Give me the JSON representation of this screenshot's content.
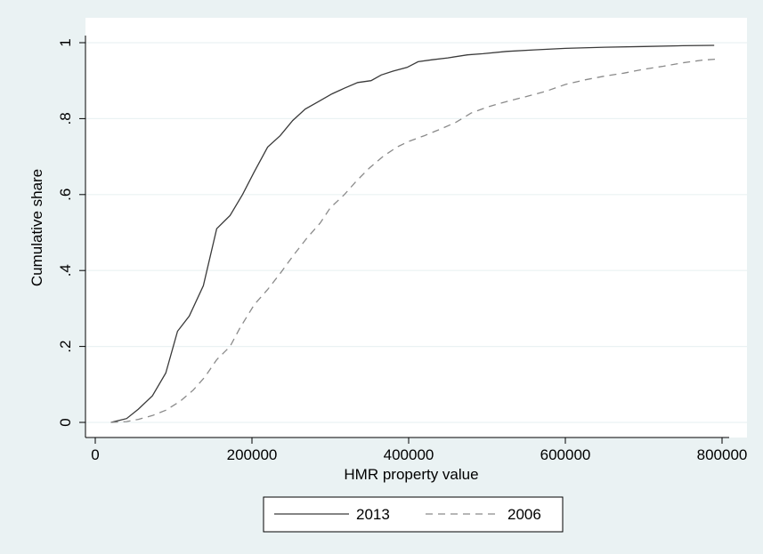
{
  "chart_data": {
    "type": "line",
    "xlabel": "HMR property value",
    "ylabel": "Cumulative share",
    "xlim": [
      0,
      800000
    ],
    "ylim": [
      0,
      1
    ],
    "x_ticks": [
      0,
      200000,
      400000,
      600000,
      800000
    ],
    "x_tick_labels": [
      "0",
      "200000",
      "400000",
      "600000",
      "800000"
    ],
    "y_ticks": [
      0,
      0.2,
      0.4,
      0.6,
      0.8,
      1
    ],
    "y_tick_labels": [
      "0",
      ".2",
      ".4",
      ".6",
      ".8",
      "1"
    ],
    "grid": "horizontal",
    "legend_position": "bottom",
    "series": [
      {
        "name": "2013",
        "style": "solid",
        "color": "#3a3a3a",
        "points": [
          [
            20000,
            0.0
          ],
          [
            40000,
            0.01
          ],
          [
            55000,
            0.035
          ],
          [
            73000,
            0.07
          ],
          [
            90000,
            0.13
          ],
          [
            105000,
            0.24
          ],
          [
            120000,
            0.28
          ],
          [
            138000,
            0.36
          ],
          [
            155000,
            0.51
          ],
          [
            172000,
            0.545
          ],
          [
            188000,
            0.6
          ],
          [
            203000,
            0.66
          ],
          [
            220000,
            0.725
          ],
          [
            236000,
            0.755
          ],
          [
            252000,
            0.795
          ],
          [
            268000,
            0.825
          ],
          [
            285000,
            0.845
          ],
          [
            302000,
            0.865
          ],
          [
            318000,
            0.88
          ],
          [
            335000,
            0.895
          ],
          [
            352000,
            0.9
          ],
          [
            365000,
            0.915
          ],
          [
            380000,
            0.925
          ],
          [
            398000,
            0.935
          ],
          [
            412000,
            0.95
          ],
          [
            430000,
            0.955
          ],
          [
            450000,
            0.96
          ],
          [
            475000,
            0.968
          ],
          [
            495000,
            0.971
          ],
          [
            525000,
            0.977
          ],
          [
            560000,
            0.981
          ],
          [
            600000,
            0.985
          ],
          [
            650000,
            0.988
          ],
          [
            700000,
            0.99
          ],
          [
            750000,
            0.992
          ],
          [
            790000,
            0.993
          ]
        ]
      },
      {
        "name": "2006",
        "style": "dashed",
        "color": "#8a8a8a",
        "points": [
          [
            20000,
            0.0
          ],
          [
            40000,
            0.002
          ],
          [
            55000,
            0.008
          ],
          [
            73000,
            0.018
          ],
          [
            90000,
            0.032
          ],
          [
            108000,
            0.055
          ],
          [
            125000,
            0.085
          ],
          [
            140000,
            0.12
          ],
          [
            155000,
            0.165
          ],
          [
            172000,
            0.2
          ],
          [
            185000,
            0.25
          ],
          [
            203000,
            0.31
          ],
          [
            220000,
            0.35
          ],
          [
            237000,
            0.395
          ],
          [
            253000,
            0.44
          ],
          [
            270000,
            0.485
          ],
          [
            287000,
            0.525
          ],
          [
            300000,
            0.565
          ],
          [
            318000,
            0.6
          ],
          [
            333000,
            0.635
          ],
          [
            350000,
            0.67
          ],
          [
            367000,
            0.7
          ],
          [
            385000,
            0.725
          ],
          [
            400000,
            0.74
          ],
          [
            420000,
            0.755
          ],
          [
            440000,
            0.772
          ],
          [
            460000,
            0.79
          ],
          [
            480000,
            0.815
          ],
          [
            503000,
            0.832
          ],
          [
            525000,
            0.845
          ],
          [
            550000,
            0.858
          ],
          [
            575000,
            0.872
          ],
          [
            600000,
            0.89
          ],
          [
            625000,
            0.902
          ],
          [
            650000,
            0.912
          ],
          [
            675000,
            0.92
          ],
          [
            700000,
            0.93
          ],
          [
            725000,
            0.938
          ],
          [
            750000,
            0.947
          ],
          [
            775000,
            0.954
          ],
          [
            795000,
            0.957
          ]
        ]
      }
    ]
  }
}
